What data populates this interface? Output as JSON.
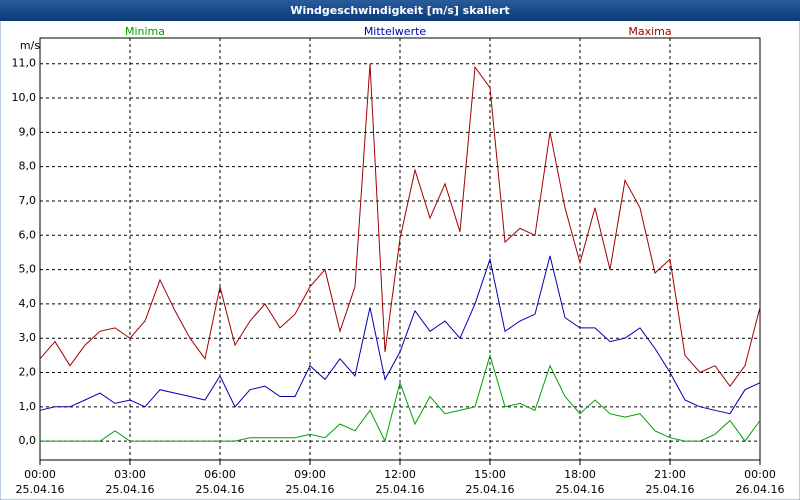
{
  "chart_data": {
    "type": "line",
    "title": "Windgeschwindigkeit [m/s] skaliert",
    "y_label": "m/s",
    "x": [
      0,
      0.5,
      1,
      1.5,
      2,
      2.5,
      3,
      3.5,
      4,
      4.5,
      5,
      5.5,
      6,
      6.5,
      7,
      7.5,
      8,
      8.5,
      9,
      9.5,
      10,
      10.5,
      11,
      11.5,
      12,
      12.5,
      13,
      13.5,
      14,
      14.5,
      15,
      15.5,
      16,
      16.5,
      17,
      17.5,
      18,
      18.5,
      19,
      19.5,
      20,
      20.5,
      21,
      21.5,
      22,
      22.5,
      23,
      23.5,
      24
    ],
    "series": [
      {
        "name": "Minima",
        "color": "#00a000",
        "values": [
          0,
          0,
          0,
          0,
          0,
          0.3,
          0,
          0,
          0,
          0,
          0,
          0,
          0,
          0,
          0.1,
          0.1,
          0.1,
          0.1,
          0.2,
          0.1,
          0.5,
          0.3,
          0.9,
          0,
          1.7,
          0.5,
          1.3,
          0.8,
          0.9,
          1.0,
          2.5,
          1.0,
          1.1,
          0.9,
          2.2,
          1.3,
          0.8,
          1.2,
          0.8,
          0.7,
          0.8,
          0.3,
          0.1,
          0,
          0,
          0.2,
          0.6,
          0,
          0.6
        ]
      },
      {
        "name": "Mittelwerte",
        "color": "#0000b0",
        "values": [
          0.9,
          1.0,
          1.0,
          1.2,
          1.4,
          1.1,
          1.2,
          1.0,
          1.5,
          1.4,
          1.3,
          1.2,
          1.9,
          1.0,
          1.5,
          1.6,
          1.3,
          1.3,
          2.2,
          1.8,
          2.4,
          1.9,
          3.9,
          1.8,
          2.6,
          3.8,
          3.2,
          3.5,
          3.0,
          4.0,
          5.3,
          3.2,
          3.5,
          3.7,
          5.4,
          3.6,
          3.3,
          3.3,
          2.9,
          3.0,
          3.3,
          2.7,
          2.0,
          1.2,
          1.0,
          0.9,
          0.8,
          1.5,
          1.7
        ]
      },
      {
        "name": "Maxima",
        "color": "#a00000",
        "values": [
          2.4,
          2.9,
          2.2,
          2.8,
          3.2,
          3.3,
          3.0,
          3.5,
          4.7,
          3.8,
          3.0,
          2.4,
          4.5,
          2.8,
          3.5,
          4.0,
          3.3,
          3.7,
          4.5,
          5.0,
          3.2,
          4.5,
          11.0,
          2.6,
          5.9,
          7.9,
          6.5,
          7.5,
          6.1,
          10.9,
          10.3,
          5.8,
          6.2,
          6.0,
          9.0,
          6.8,
          5.2,
          6.8,
          5.0,
          7.6,
          6.8,
          4.9,
          5.3,
          2.5,
          2.0,
          2.2,
          1.6,
          2.2,
          3.9
        ]
      }
    ],
    "xlim": [
      0,
      24
    ],
    "ylim": [
      -0.55,
      11.75
    ],
    "xticks": [
      {
        "value": 0,
        "label": "00:00",
        "date": "25.04.16"
      },
      {
        "value": 3,
        "label": "03:00",
        "date": "25.04.16"
      },
      {
        "value": 6,
        "label": "06:00",
        "date": "25.04.16"
      },
      {
        "value": 9,
        "label": "09:00",
        "date": "25.04.16"
      },
      {
        "value": 12,
        "label": "12:00",
        "date": "25.04.16"
      },
      {
        "value": 15,
        "label": "15:00",
        "date": "25.04.16"
      },
      {
        "value": 18,
        "label": "18:00",
        "date": "25.04.16"
      },
      {
        "value": 21,
        "label": "21:00",
        "date": "25.04.16"
      },
      {
        "value": 24,
        "label": "00:00",
        "date": "26.04.16"
      }
    ],
    "yticks": [
      {
        "value": 0,
        "label": "0,0"
      },
      {
        "value": 1,
        "label": "1,0"
      },
      {
        "value": 2,
        "label": "2,0"
      },
      {
        "value": 3,
        "label": "3,0"
      },
      {
        "value": 4,
        "label": "4,0"
      },
      {
        "value": 5,
        "label": "5,0"
      },
      {
        "value": 6,
        "label": "6,0"
      },
      {
        "value": 7,
        "label": "7,0"
      },
      {
        "value": 8,
        "label": "8,0"
      },
      {
        "value": 9,
        "label": "9,0"
      },
      {
        "value": 10,
        "label": "10,0"
      },
      {
        "value": 11,
        "label": "11,0"
      }
    ],
    "grid": true
  }
}
